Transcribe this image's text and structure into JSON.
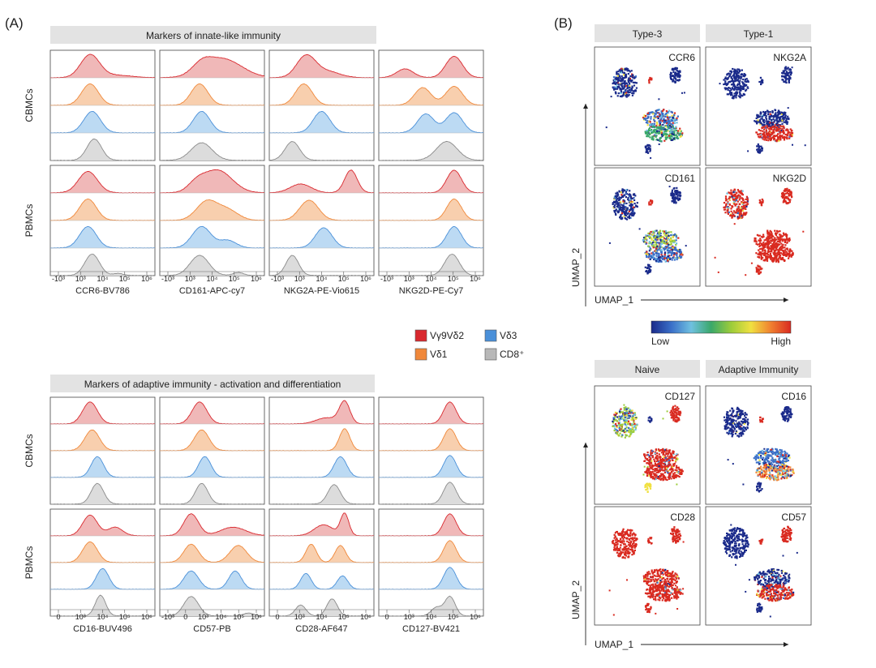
{
  "chart_data": {
    "type": "histogram-panels",
    "panel_a": {
      "label": "(A)",
      "sections": [
        {
          "title": "Markers of innate-like immunity",
          "markers": [
            "CCR6-BV786",
            "CD161-APC-cy7",
            "NKG2A-PE-Vio615",
            "NKG2D-PE-Cy7"
          ],
          "tick_labels": [
            [
              "-10³",
              "10³",
              "10⁴",
              "10⁵",
              "10⁶"
            ],
            [
              "-10³",
              "10³",
              "10⁴",
              "10⁵",
              "10⁶"
            ],
            [
              "-10³",
              "10³",
              "10⁴",
              "10⁵",
              "10⁶"
            ],
            [
              "-10³",
              "10³",
              "10⁴",
              "10⁵",
              "10⁶"
            ]
          ],
          "blocks": [
            {
              "tissue": "CBMCs",
              "peaks": [
                [
                  [
                    [
                      0.38,
                      0.9,
                      0.09
                    ],
                    [
                      0.62,
                      0.1,
                      0.15
                    ]
                  ],
                  [
                    [
                      0.38,
                      0.85,
                      0.08
                    ]
                  ],
                  [
                    [
                      0.4,
                      0.85,
                      0.08
                    ]
                  ],
                  [
                    [
                      0.42,
                      0.85,
                      0.07
                    ]
                  ]
                ],
                [
                  [
                    [
                      0.6,
                      0.75,
                      0.18
                    ],
                    [
                      0.4,
                      0.35,
                      0.09
                    ]
                  ],
                  [
                    [
                      0.38,
                      0.85,
                      0.08
                    ]
                  ],
                  [
                    [
                      0.4,
                      0.85,
                      0.08
                    ]
                  ],
                  [
                    [
                      0.4,
                      0.7,
                      0.1
                    ]
                  ]
                ],
                [
                  [
                    [
                      0.35,
                      0.85,
                      0.09
                    ],
                    [
                      0.55,
                      0.25,
                      0.12
                    ]
                  ],
                  [
                    [
                      0.33,
                      0.85,
                      0.08
                    ]
                  ],
                  [
                    [
                      0.5,
                      0.85,
                      0.08
                    ]
                  ],
                  [
                    [
                      0.22,
                      0.75,
                      0.07
                    ]
                  ]
                ],
                [
                  [
                    [
                      0.72,
                      0.85,
                      0.08
                    ],
                    [
                      0.25,
                      0.35,
                      0.08
                    ]
                  ],
                  [
                    [
                      0.42,
                      0.7,
                      0.08
                    ],
                    [
                      0.72,
                      0.75,
                      0.08
                    ]
                  ],
                  [
                    [
                      0.45,
                      0.75,
                      0.08
                    ],
                    [
                      0.72,
                      0.8,
                      0.08
                    ]
                  ],
                  [
                    [
                      0.65,
                      0.75,
                      0.1
                    ]
                  ]
                ]
              ]
            },
            {
              "tissue": "PBMCs",
              "peaks": [
                [
                  [
                    [
                      0.36,
                      0.85,
                      0.09
                    ]
                  ],
                  [
                    [
                      0.36,
                      0.85,
                      0.08
                    ]
                  ],
                  [
                    [
                      0.36,
                      0.85,
                      0.08
                    ]
                  ],
                  [
                    [
                      0.4,
                      0.85,
                      0.07
                    ],
                    [
                      0.65,
                      0.08,
                      0.05
                    ]
                  ]
                ],
                [
                  [
                    [
                      0.55,
                      0.9,
                      0.14
                    ],
                    [
                      0.35,
                      0.3,
                      0.08
                    ]
                  ],
                  [
                    [
                      0.45,
                      0.75,
                      0.1
                    ],
                    [
                      0.65,
                      0.4,
                      0.1
                    ]
                  ],
                  [
                    [
                      0.4,
                      0.85,
                      0.09
                    ],
                    [
                      0.65,
                      0.3,
                      0.08
                    ]
                  ],
                  [
                    [
                      0.38,
                      0.8,
                      0.09
                    ],
                    [
                      0.75,
                      0.12,
                      0.05
                    ]
                  ]
                ],
                [
                  [
                    [
                      0.78,
                      0.9,
                      0.06
                    ],
                    [
                      0.3,
                      0.35,
                      0.1
                    ]
                  ],
                  [
                    [
                      0.38,
                      0.8,
                      0.09
                    ]
                  ],
                  [
                    [
                      0.52,
                      0.8,
                      0.08
                    ]
                  ],
                  [
                    [
                      0.22,
                      0.8,
                      0.06
                    ]
                  ]
                ],
                [
                  [
                    [
                      0.72,
                      0.9,
                      0.07
                    ]
                  ],
                  [
                    [
                      0.72,
                      0.85,
                      0.07
                    ]
                  ],
                  [
                    [
                      0.72,
                      0.85,
                      0.07
                    ]
                  ],
                  [
                    [
                      0.7,
                      0.85,
                      0.07
                    ]
                  ]
                ]
              ]
            }
          ]
        },
        {
          "title": "Markers of adaptive immunity - activation and differentiation",
          "markers": [
            "CD16-BUV496",
            "CD57-PB",
            "CD28-AF647",
            "CD127-BV421"
          ],
          "tick_labels": [
            [
              "0",
              "10³",
              "10⁴",
              "10⁵",
              "10⁶"
            ],
            [
              "-10³",
              "0",
              "10³",
              "10⁴",
              "10⁵",
              "10⁶"
            ],
            [
              "0",
              "10³",
              "10⁴",
              "10⁵",
              "10⁶"
            ],
            [
              "0",
              "10³",
              "10⁴",
              "10⁵",
              "10⁶"
            ]
          ],
          "blocks": [
            {
              "tissue": "CBMCs",
              "peaks": [
                [
                  [
                    [
                      0.38,
                      0.9,
                      0.07
                    ]
                  ],
                  [
                    [
                      0.4,
                      0.85,
                      0.07
                    ]
                  ],
                  [
                    [
                      0.45,
                      0.85,
                      0.06
                    ]
                  ],
                  [
                    [
                      0.45,
                      0.85,
                      0.06
                    ]
                  ]
                ],
                [
                  [
                    [
                      0.38,
                      0.9,
                      0.07
                    ]
                  ],
                  [
                    [
                      0.4,
                      0.85,
                      0.07
                    ]
                  ],
                  [
                    [
                      0.43,
                      0.85,
                      0.06
                    ]
                  ],
                  [
                    [
                      0.4,
                      0.85,
                      0.06
                    ]
                  ]
                ],
                [
                  [
                    [
                      0.72,
                      0.9,
                      0.05
                    ],
                    [
                      0.55,
                      0.25,
                      0.1
                    ]
                  ],
                  [
                    [
                      0.72,
                      0.9,
                      0.05
                    ]
                  ],
                  [
                    [
                      0.68,
                      0.85,
                      0.06
                    ]
                  ],
                  [
                    [
                      0.62,
                      0.8,
                      0.06
                    ]
                  ]
                ],
                [
                  [
                    [
                      0.68,
                      0.9,
                      0.06
                    ]
                  ],
                  [
                    [
                      0.68,
                      0.9,
                      0.06
                    ]
                  ],
                  [
                    [
                      0.68,
                      0.9,
                      0.06
                    ]
                  ],
                  [
                    [
                      0.68,
                      0.9,
                      0.06
                    ]
                  ]
                ]
              ]
            },
            {
              "tissue": "PBMCs",
              "peaks": [
                [
                  [
                    [
                      0.38,
                      0.85,
                      0.07
                    ],
                    [
                      0.62,
                      0.35,
                      0.07
                    ]
                  ],
                  [
                    [
                      0.38,
                      0.85,
                      0.07
                    ]
                  ],
                  [
                    [
                      0.5,
                      0.85,
                      0.06
                    ]
                  ],
                  [
                    [
                      0.48,
                      0.85,
                      0.05
                    ]
                  ]
                ],
                [
                  [
                    [
                      0.3,
                      0.9,
                      0.07
                    ],
                    [
                      0.7,
                      0.35,
                      0.12
                    ]
                  ],
                  [
                    [
                      0.3,
                      0.75,
                      0.07
                    ],
                    [
                      0.75,
                      0.7,
                      0.08
                    ]
                  ],
                  [
                    [
                      0.3,
                      0.75,
                      0.07
                    ],
                    [
                      0.72,
                      0.75,
                      0.06
                    ]
                  ],
                  [
                    [
                      0.3,
                      0.8,
                      0.07
                    ],
                    [
                      0.85,
                      0.12,
                      0.05
                    ]
                  ]
                ],
                [
                  [
                    [
                      0.72,
                      0.9,
                      0.04
                    ],
                    [
                      0.52,
                      0.45,
                      0.09
                    ]
                  ],
                  [
                    [
                      0.4,
                      0.75,
                      0.05
                    ],
                    [
                      0.68,
                      0.7,
                      0.05
                    ]
                  ],
                  [
                    [
                      0.35,
                      0.65,
                      0.05
                    ],
                    [
                      0.7,
                      0.55,
                      0.05
                    ]
                  ],
                  [
                    [
                      0.3,
                      0.45,
                      0.05
                    ],
                    [
                      0.6,
                      0.7,
                      0.05
                    ]
                  ]
                ],
                [
                  [
                    [
                      0.68,
                      0.9,
                      0.06
                    ]
                  ],
                  [
                    [
                      0.68,
                      0.9,
                      0.06
                    ]
                  ],
                  [
                    [
                      0.68,
                      0.9,
                      0.06
                    ]
                  ],
                  [
                    [
                      0.55,
                      0.35,
                      0.05
                    ],
                    [
                      0.68,
                      0.8,
                      0.05
                    ]
                  ]
                ]
              ]
            }
          ]
        }
      ],
      "legend": [
        {
          "label": "Vγ9Vδ2",
          "color": "#d9282e"
        },
        {
          "label": "Vδ3",
          "color": "#4a90d9"
        },
        {
          "label": "Vδ1",
          "color": "#f0883a"
        },
        {
          "label": "CD8⁺",
          "color": "#b8b8b8"
        }
      ]
    },
    "panel_b": {
      "label": "(B)",
      "groups": [
        {
          "headers": [
            "Type-3",
            "Type-1"
          ],
          "maps": [
            [
              "CCR6",
              "NKG2A"
            ],
            [
              "CD161",
              "NKG2D"
            ]
          ]
        },
        {
          "headers": [
            "Naive",
            "Adaptive Immunity"
          ],
          "maps": [
            [
              "CD127",
              "CD16"
            ],
            [
              "CD28",
              "CD57"
            ]
          ]
        }
      ],
      "xlabel": "UMAP_1",
      "ylabel": "UMAP_2",
      "colorbar": {
        "low": "Low",
        "high": "High",
        "colors": [
          "#1a2a8a",
          "#3a6fc8",
          "#6fc0e0",
          "#3aa86a",
          "#9ccc3a",
          "#f0e040",
          "#f08030",
          "#d92a20"
        ]
      }
    }
  }
}
